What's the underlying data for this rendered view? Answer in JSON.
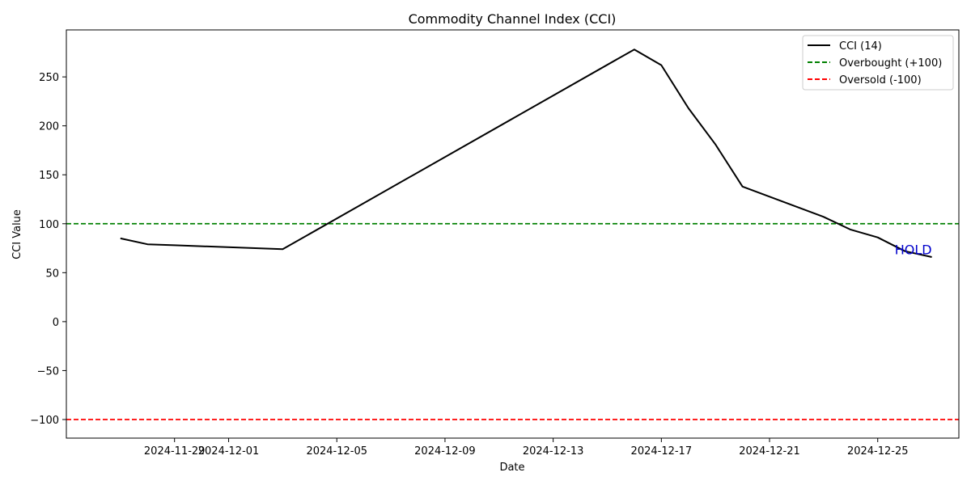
{
  "chart_data": {
    "type": "line",
    "title": "Commodity Channel Index (CCI)",
    "xlabel": "Date",
    "ylabel": "CCI Value",
    "xlim": [
      "2024-11-25",
      "2024-12-28"
    ],
    "ylim": [
      -119,
      298
    ],
    "x_ticks": [
      "2024-11-29",
      "2024-12-01",
      "2024-12-05",
      "2024-12-09",
      "2024-12-13",
      "2024-12-17",
      "2024-12-21",
      "2024-12-25"
    ],
    "y_ticks": [
      -100,
      -50,
      0,
      50,
      100,
      150,
      200,
      250
    ],
    "grid": false,
    "legend_position": "top-right",
    "series": [
      {
        "name": "CCI (14)",
        "color": "#000000",
        "style": "solid",
        "x": [
          "2024-11-27",
          "2024-11-28",
          "2024-11-29",
          "2024-12-03",
          "2024-12-16",
          "2024-12-17",
          "2024-12-18",
          "2024-12-19",
          "2024-12-20",
          "2024-12-23",
          "2024-12-24",
          "2024-12-25",
          "2024-12-26",
          "2024-12-27"
        ],
        "y": [
          85,
          79,
          78,
          74,
          278,
          262,
          218,
          181,
          138,
          107,
          94,
          86,
          72,
          66
        ]
      },
      {
        "name": "Overbought (+100)",
        "color": "#008000",
        "style": "dashed",
        "y_constant": 100
      },
      {
        "name": "Oversold (-100)",
        "color": "#ff0000",
        "style": "dashed",
        "y_constant": -100
      }
    ],
    "annotations": [
      {
        "text": "HOLD",
        "x": "2024-12-27",
        "y": 74,
        "color": "#0000cc"
      }
    ]
  }
}
